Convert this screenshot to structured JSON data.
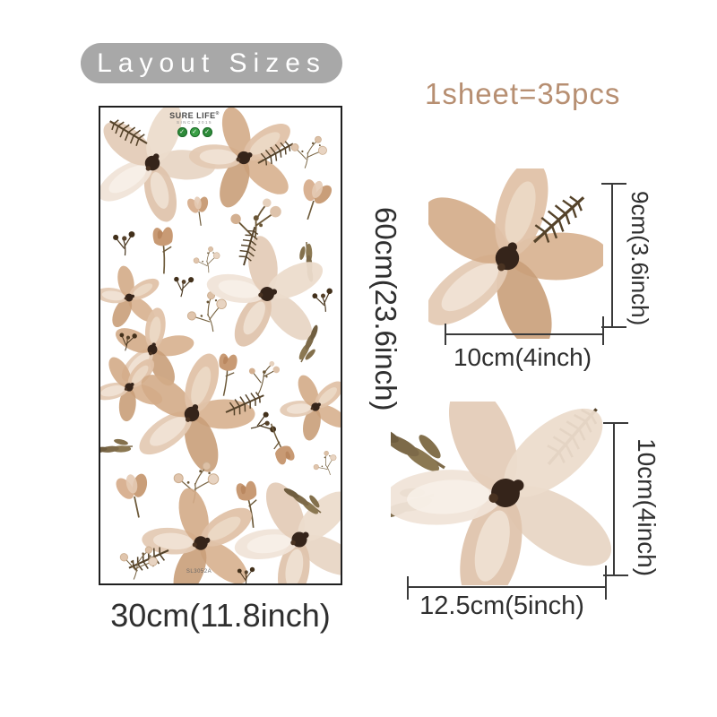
{
  "header": {
    "badge_label": "Layout Sizes",
    "sheet_count_label": "1sheet=35pcs"
  },
  "sheet": {
    "logo_title": "SURE LIFE",
    "logo_reg": "®",
    "logo_subtitle": "SINCE 2015",
    "logo_badge_icons": [
      "eco-badge",
      "eco-badge",
      "eco-badge"
    ],
    "sku": "SL3052A",
    "width_label": "30cm(11.8inch)",
    "height_label": "60cm(23.6inch)"
  },
  "samples": [
    {
      "name": "flower-sample-small",
      "height_label": "9cm(3.6inch)",
      "width_label": "10cm(4inch)"
    },
    {
      "name": "flower-sample-large",
      "height_label": "10cm(4inch)",
      "width_label": "12.5cm(5inch)"
    }
  ],
  "colors": {
    "badge_bg": "#a8a8a8",
    "badge_text": "#ffffff",
    "accent_tan": "#b78f72",
    "dimension_text": "#2f2f2f",
    "dimension_line": "#3a3a3a",
    "sheet_border": "#1f1f1f",
    "petal_light": "#ecddcf",
    "petal_tan": "#c99e79",
    "leaf_olive": "#7d6a49",
    "leaf_dark": "#55432a",
    "flower_center": "#35241a",
    "logo_green": "#2e8b3a"
  }
}
